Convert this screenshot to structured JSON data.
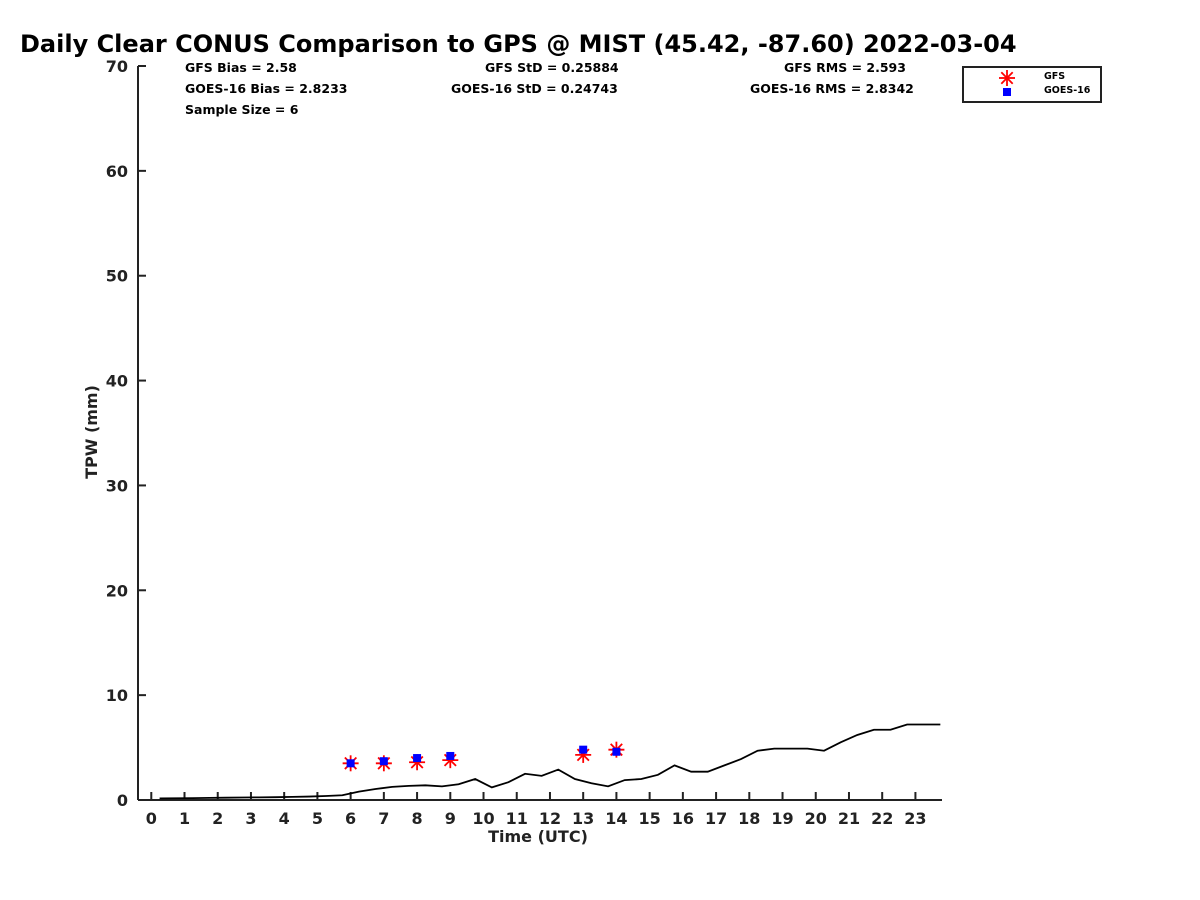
{
  "chart_data": {
    "type": "scatter",
    "title": "Daily Clear CONUS Comparison to GPS @ MIST (45.42, -87.60) 2022-03-04",
    "xlabel": "Time (UTC)",
    "ylabel": "TPW (mm)",
    "xlim": [
      -0.4,
      23.8
    ],
    "ylim": [
      0,
      70
    ],
    "xticks": [
      0,
      1,
      2,
      3,
      4,
      5,
      6,
      7,
      8,
      9,
      10,
      11,
      12,
      13,
      14,
      15,
      16,
      17,
      18,
      19,
      20,
      21,
      22,
      23
    ],
    "yticks": [
      0,
      10,
      20,
      30,
      40,
      50,
      60,
      70
    ],
    "grid": false,
    "legend": {
      "placement": "top-right"
    },
    "series": [
      {
        "name": "",
        "kind": "line",
        "color": "#000000",
        "x": [
          0.25,
          0.75,
          1.25,
          1.75,
          2.25,
          2.75,
          3.25,
          3.75,
          4.25,
          4.75,
          5.25,
          5.75,
          6.25,
          6.75,
          7.25,
          7.75,
          8.25,
          8.75,
          9.25,
          9.75,
          10.25,
          10.75,
          11.25,
          11.75,
          12.25,
          12.75,
          13.25,
          13.75,
          14.25,
          14.75,
          15.25,
          15.75,
          16.25,
          16.75,
          17.25,
          17.75,
          18.25,
          18.75,
          19.25,
          19.75,
          20.25,
          20.75,
          21.25,
          21.75,
          22.25,
          22.75,
          23.25,
          23.75
        ],
        "y": [
          0.15,
          0.17,
          0.18,
          0.2,
          0.22,
          0.24,
          0.25,
          0.27,
          0.3,
          0.33,
          0.38,
          0.45,
          0.8,
          1.05,
          1.25,
          1.35,
          1.4,
          1.3,
          1.5,
          2.0,
          1.2,
          1.7,
          2.5,
          2.3,
          2.9,
          2.0,
          1.6,
          1.3,
          1.9,
          2.0,
          2.4,
          3.3,
          2.7,
          2.7,
          3.3,
          3.9,
          4.7,
          4.9,
          4.9,
          4.9,
          4.7,
          5.5,
          6.2,
          6.7,
          6.7,
          7.2,
          7.2,
          7.2
        ]
      },
      {
        "name": "GFS",
        "kind": "asterisk",
        "color": "#ff0000",
        "x": [
          6,
          7,
          8,
          9,
          13,
          14
        ],
        "y": [
          3.5,
          3.5,
          3.6,
          3.8,
          4.3,
          4.8
        ]
      },
      {
        "name": "GOES-16",
        "kind": "square",
        "color": "#0000ff",
        "x": [
          6,
          7,
          8,
          9,
          13,
          14
        ],
        "y": [
          3.5,
          3.7,
          4.0,
          4.2,
          4.8,
          4.6
        ]
      }
    ]
  },
  "stats": {
    "gfs_bias": "GFS Bias = 2.58",
    "goes_bias": "GOES-16 Bias = 2.8233",
    "sample_size": "Sample Size = 6",
    "gfs_std": "GFS StD = 0.25884",
    "goes_std": "GOES-16 StD = 0.24743",
    "gfs_rms": "GFS RMS = 2.593",
    "goes_rms": "GOES-16 RMS = 2.8342"
  },
  "legend_labels": {
    "gfs": "GFS",
    "goes": "GOES-16"
  }
}
